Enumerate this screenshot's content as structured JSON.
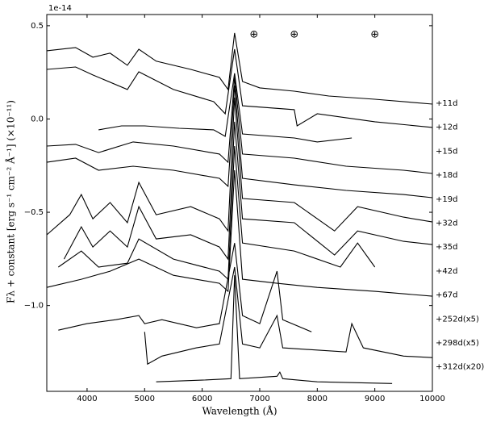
{
  "chart_data": {
    "type": "line",
    "offset_label": "1e-14",
    "x_label": "Wavelength (Å)",
    "y_label": "Fλ + constant [erg s⁻¹ cm⁻² Å⁻¹] (×10⁻¹¹)",
    "xlim": [
      3300,
      10000
    ],
    "ylim": [
      -1.46,
      0.56
    ],
    "xticks": [
      4000,
      5000,
      6000,
      7000,
      8000,
      9000,
      10000
    ],
    "yticks": [
      {
        "value": -1.0,
        "label": "−1.0"
      },
      {
        "value": -0.5,
        "label": "−0.5"
      },
      {
        "value": 0,
        "label": "0.0"
      },
      {
        "value": 0.5,
        "label": "0.5"
      }
    ],
    "annotations": [
      {
        "text": "⊕",
        "x": 6900
      },
      {
        "text": "⊕",
        "x": 7600
      },
      {
        "text": "⊕",
        "x": 9000
      }
    ],
    "series": [
      {
        "name": "+11d",
        "color": "#000000",
        "x": [
          3300,
          3800,
          4100,
          4400,
          4700,
          4900,
          5200,
          5800,
          6300,
          6450,
          6563,
          6700,
          7000,
          7600,
          8200,
          9000,
          10000
        ],
        "values": [
          0.366,
          0.383,
          0.331,
          0.353,
          0.288,
          0.374,
          0.31,
          0.266,
          0.223,
          0.158,
          0.461,
          0.201,
          0.167,
          0.149,
          0.123,
          0.106,
          0.08
        ]
      },
      {
        "name": "+12d",
        "color": "#000000",
        "x": [
          3300,
          3800,
          4100,
          4700,
          4900,
          5500,
          6200,
          6400,
          6563,
          6700,
          7600,
          7650,
          8000,
          9000,
          10000
        ],
        "values": [
          0.266,
          0.279,
          0.236,
          0.158,
          0.253,
          0.158,
          0.093,
          0.028,
          0.374,
          0.071,
          0.05,
          -0.037,
          0.028,
          -0.015,
          -0.045
        ]
      },
      {
        "name": "+15d",
        "color": "#000000",
        "x": [
          4200,
          4600,
          5000,
          5600,
          6200,
          6400,
          6563,
          6700,
          7600,
          8000,
          8600
        ],
        "values": [
          -0.058,
          -0.037,
          -0.037,
          -0.05,
          -0.058,
          -0.093,
          0.245,
          -0.08,
          -0.102,
          -0.123,
          -0.102
        ]
      },
      {
        "name": "+18d",
        "color": "#000000",
        "x": [
          3300,
          3800,
          4200,
          4800,
          5500,
          6300,
          6450,
          6563,
          6700,
          7600,
          8500,
          9500,
          10000
        ],
        "values": [
          -0.145,
          -0.136,
          -0.18,
          -0.123,
          -0.145,
          -0.188,
          -0.232,
          0.223,
          -0.188,
          -0.21,
          -0.253,
          -0.275,
          -0.292
        ]
      },
      {
        "name": "+19d",
        "color": "#000000",
        "x": [
          3300,
          3800,
          4200,
          4800,
          5500,
          6300,
          6450,
          6563,
          6700,
          7600,
          8500,
          9500,
          10000
        ],
        "values": [
          -0.232,
          -0.21,
          -0.275,
          -0.253,
          -0.275,
          -0.318,
          -0.361,
          0.18,
          -0.318,
          -0.353,
          -0.383,
          -0.405,
          -0.422
        ]
      },
      {
        "name": "+32d",
        "color": "#000000",
        "x": [
          3300,
          3700,
          3900,
          4100,
          4400,
          4700,
          4900,
          5200,
          5800,
          6300,
          6450,
          6563,
          6700,
          7600,
          8300,
          8700,
          9500,
          10000
        ],
        "values": [
          -0.621,
          -0.513,
          -0.405,
          -0.535,
          -0.448,
          -0.556,
          -0.34,
          -0.513,
          -0.47,
          -0.535,
          -0.6,
          0.115,
          -0.426,
          -0.448,
          -0.6,
          -0.47,
          -0.526,
          -0.552
        ]
      },
      {
        "name": "+35d",
        "color": "#000000",
        "x": [
          3600,
          3900,
          4100,
          4400,
          4700,
          4900,
          5200,
          5800,
          6300,
          6450,
          6563,
          6700,
          7600,
          8300,
          8700,
          9500,
          10000
        ],
        "values": [
          -0.751,
          -0.578,
          -0.686,
          -0.6,
          -0.686,
          -0.47,
          -0.643,
          -0.621,
          -0.686,
          -0.751,
          -0.015,
          -0.535,
          -0.556,
          -0.729,
          -0.6,
          -0.656,
          -0.673
        ]
      },
      {
        "name": "+42d",
        "color": "#000000",
        "x": [
          3500,
          3900,
          4200,
          4700,
          4900,
          5500,
          6300,
          6450,
          6563,
          6700,
          7600,
          8400,
          8700,
          9000
        ],
        "values": [
          -0.794,
          -0.708,
          -0.794,
          -0.773,
          -0.643,
          -0.751,
          -0.816,
          -0.859,
          -0.145,
          -0.665,
          -0.708,
          -0.794,
          -0.665,
          -0.794
        ]
      },
      {
        "name": "+67d",
        "color": "#000000",
        "x": [
          3300,
          3900,
          4400,
          4900,
          5500,
          6300,
          6450,
          6563,
          6700,
          7300,
          8000,
          9000,
          10000
        ],
        "values": [
          -0.903,
          -0.859,
          -0.816,
          -0.751,
          -0.838,
          -0.881,
          -0.924,
          -0.275,
          -0.859,
          -0.881,
          -0.903,
          -0.924,
          -0.95
        ]
      },
      {
        "name": "+252d(x5)",
        "color": "#000000",
        "x": [
          3500,
          4000,
          4500,
          4900,
          5000,
          5300,
          5900,
          6300,
          6563,
          6700,
          7000,
          7300,
          7400,
          7900
        ],
        "values": [
          -1.132,
          -1.097,
          -1.076,
          -1.054,
          -1.097,
          -1.076,
          -1.119,
          -1.097,
          -0.665,
          -1.054,
          -1.097,
          -0.816,
          -1.076,
          -1.141
        ]
      },
      {
        "name": "+298d(x5)",
        "color": "#000000",
        "x": [
          5000,
          5050,
          5300,
          5900,
          6300,
          6563,
          6700,
          7000,
          7300,
          7400,
          8500,
          8600,
          8800,
          9500,
          10000
        ],
        "values": [
          -1.141,
          -1.314,
          -1.271,
          -1.227,
          -1.206,
          -0.794,
          -1.206,
          -1.227,
          -1.054,
          -1.227,
          -1.249,
          -1.097,
          -1.227,
          -1.271,
          -1.279
        ]
      },
      {
        "name": "+312d(x20)",
        "color": "#000000",
        "x": [
          5200,
          6000,
          6500,
          6563,
          6650,
          7300,
          7350,
          7400,
          8000,
          9300
        ],
        "values": [
          -1.409,
          -1.4,
          -1.392,
          -0.838,
          -1.392,
          -1.379,
          -1.357,
          -1.392,
          -1.409,
          -1.418
        ]
      }
    ]
  }
}
